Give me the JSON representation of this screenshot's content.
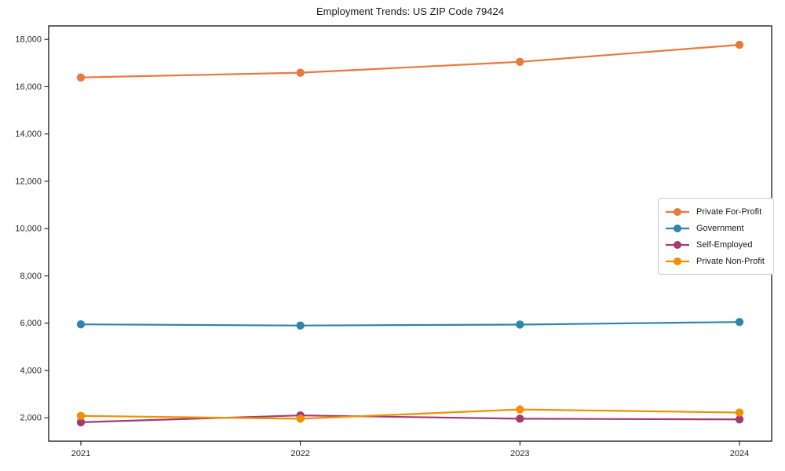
{
  "chart_data": {
    "type": "line",
    "title": "Employment Trends: US ZIP Code 79424",
    "xlabel": "",
    "ylabel": "",
    "categories": [
      "2021",
      "2022",
      "2023",
      "2024"
    ],
    "series": [
      {
        "name": "Private For-Profit",
        "color": "#E8793E",
        "values": [
          16390,
          16590,
          17050,
          17770
        ]
      },
      {
        "name": "Government",
        "color": "#2E86AB",
        "values": [
          5950,
          5900,
          5940,
          6050
        ]
      },
      {
        "name": "Self-Employed",
        "color": "#A23B72",
        "values": [
          1810,
          2100,
          1960,
          1930
        ]
      },
      {
        "name": "Private Non-Profit",
        "color": "#F18F01",
        "values": [
          2080,
          1960,
          2350,
          2220
        ]
      }
    ],
    "yticks": {
      "values": [
        2000,
        4000,
        6000,
        8000,
        10000,
        12000,
        14000,
        16000,
        18000
      ],
      "labels": [
        "2,000",
        "4,000",
        "6,000",
        "8,000",
        "10,000",
        "12,000",
        "14,000",
        "16,000",
        "18,000"
      ]
    },
    "ylim": [
      1010,
      18570
    ],
    "grid": false,
    "legend_position": "center right",
    "frame_color": "#000000",
    "text_color": "#262626"
  }
}
